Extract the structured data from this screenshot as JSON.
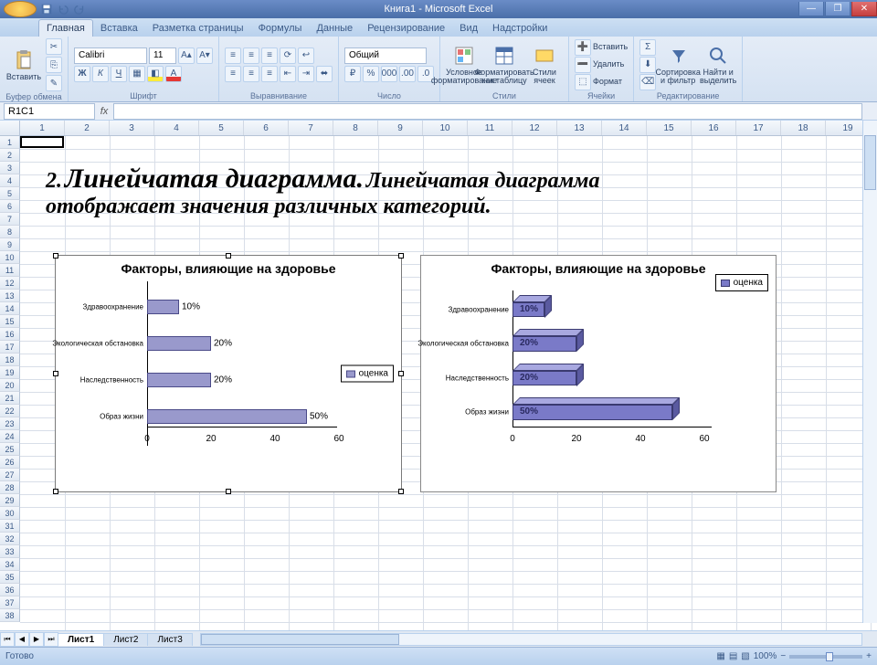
{
  "app": {
    "title": "Книга1 - Microsoft Excel"
  },
  "win": {
    "min": "—",
    "max": "❐",
    "close": "✕"
  },
  "tabs": [
    "Главная",
    "Вставка",
    "Разметка страницы",
    "Формулы",
    "Данные",
    "Рецензирование",
    "Вид",
    "Надстройки"
  ],
  "active_tab": 0,
  "ribbon": {
    "clipboard": {
      "label": "Буфер обмена",
      "paste": "Вставить"
    },
    "font": {
      "label": "Шрифт",
      "name": "Calibri",
      "size": "11",
      "buttons": [
        "Ж",
        "К",
        "Ч"
      ]
    },
    "align": {
      "label": "Выравнивание"
    },
    "number": {
      "label": "Число",
      "format": "Общий"
    },
    "styles": {
      "label": "Стили",
      "cond": "Условное форматирование",
      "fmt": "Форматировать как таблицу",
      "cell": "Стили ячеек"
    },
    "cells": {
      "label": "Ячейки",
      "ins": "Вставить",
      "del": "Удалить",
      "fmt": "Формат"
    },
    "editing": {
      "label": "Редактирование",
      "sort": "Сортировка и фильтр",
      "find": "Найти и выделить"
    }
  },
  "namebox": "R1C1",
  "fx": "fx",
  "columns": [
    "1",
    "2",
    "3",
    "4",
    "5",
    "6",
    "7",
    "8",
    "9",
    "10",
    "11",
    "12",
    "13",
    "14",
    "15",
    "16",
    "17",
    "18",
    "19"
  ],
  "row_count": 38,
  "heading": {
    "num": "2.",
    "title": "Линейчатая диаграмма.",
    "rest1": "Линейчатая диаграмма",
    "rest2": "отображает значения различных категорий."
  },
  "chart1": {
    "type": "bar",
    "title": "Факторы, влияющие на здоровье",
    "categories": [
      "Здравоохранение",
      "Экологическая обстановка",
      "Наследственность",
      "Образ жизни"
    ],
    "values": [
      10,
      20,
      20,
      50
    ],
    "labels": [
      "10%",
      "20%",
      "20%",
      "50%"
    ],
    "x_ticks": [
      0,
      20,
      40,
      60
    ],
    "xlim": [
      0,
      60
    ],
    "bar_color": "#9999cc",
    "bar_border": "#4a4a88",
    "bg": "#ffffff",
    "legend": "оценка",
    "title_fontsize": 14,
    "cat_fontsize": 8
  },
  "chart2": {
    "type": "bar3d",
    "title": "Факторы, влияющие на здоровье",
    "categories": [
      "Здравоохранение",
      "Экологическая обстановка",
      "Наследственность",
      "Образ жизни"
    ],
    "values": [
      10,
      20,
      20,
      50
    ],
    "labels": [
      "10%",
      "20%",
      "20%",
      "50%"
    ],
    "x_ticks": [
      0,
      20,
      40,
      60
    ],
    "xlim": [
      0,
      60
    ],
    "face_color": "#7a7ac8",
    "top_color": "#a8a8e0",
    "side_color": "#5a5aa0",
    "border": "#3a3a70",
    "legend": "оценка"
  },
  "sheets": [
    "Лист1",
    "Лист2",
    "Лист3"
  ],
  "active_sheet": 0,
  "status": {
    "ready": "Готово",
    "zoom": "100%"
  }
}
